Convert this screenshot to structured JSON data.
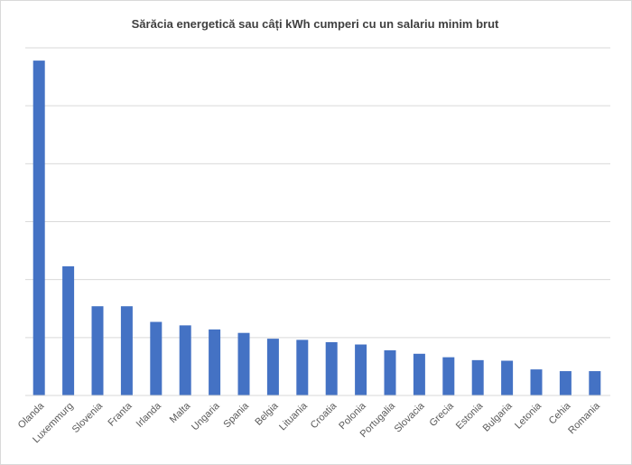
{
  "chart_data": {
    "type": "bar",
    "title": "Sărăcia energetică sau câți kWh cumperi cu un salariu minim brut",
    "xlabel": "",
    "ylabel": "",
    "categories": [
      "Olanda",
      "Luxemmurg",
      "Slovenia",
      "Franta",
      "Irlanda",
      "Malta",
      "Ungaria",
      "Spania",
      "Belgia",
      "Lituania",
      "Croatia",
      "Polonia",
      "Portugalia",
      "Slovacia",
      "Grecia",
      "Estonia",
      "Bulgaria",
      "Letonia",
      "Cehia",
      "Romania"
    ],
    "values": [
      5.78,
      2.23,
      1.54,
      1.54,
      1.27,
      1.21,
      1.14,
      1.08,
      0.98,
      0.96,
      0.92,
      0.88,
      0.78,
      0.72,
      0.66,
      0.61,
      0.6,
      0.45,
      0.42,
      0.42
    ],
    "ylim": [
      0,
      6
    ],
    "grid": true,
    "bar_color": "#4472c4"
  }
}
